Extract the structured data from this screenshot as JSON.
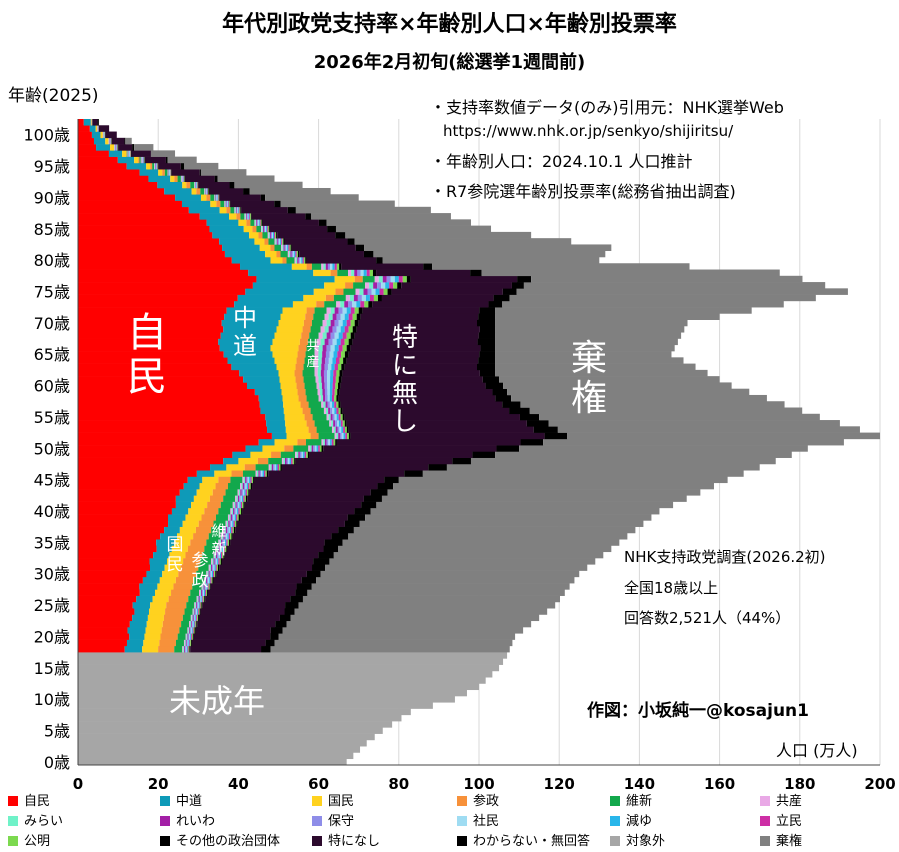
{
  "title": "年代別政党支持率×年齢別人口×年齢別投票率",
  "subtitle": "2026年2月初旬(総選挙1週間前)",
  "notes": [
    "・支持率数値データ(のみ)引用元：NHK選挙Web",
    "https://www.nhk.or.jp/senkyo/shijiritsu/",
    "・年齢別人口：2024.10.1 人口推計",
    "・R7参院選年齢別投票率(総務省抽出調査)"
  ],
  "survey_note": [
    "NHK支持政党調査(2026.2初)",
    "全国18歳以上",
    "回答数2,521人（44%）"
  ],
  "credit": "作図：小坂純一@kosajun1",
  "area_labels": {
    "jimin": "自民",
    "chudo": "中道",
    "kyosan": "共産",
    "tokuninashi": "特に無し",
    "kiken": "棄権",
    "miseinen": "未成年",
    "kokumin": "国民",
    "sansei": "参政",
    "ishin": "維新"
  },
  "colors": {
    "jimin": "#ff0000",
    "chudo": "#0e9ab8",
    "kokumin": "#ffd21f",
    "sansei": "#f7913a",
    "ishin": "#12a84c",
    "kyosan": "#e9a9e6",
    "mirai": "#6ff2c8",
    "reiwa": "#a31fa6",
    "hoshu": "#8e8de8",
    "shamin": "#9fdcf2",
    "genzei": "#29b6ea",
    "rikken": "#cd2ea5",
    "komei": "#7cd94f",
    "sonota": "#000000",
    "tokuninashi": "#2c0a2d",
    "wakaranai": "#000000",
    "taishogai": "#a6a6a6",
    "kiken": "#808080"
  },
  "chart_data": {
    "type": "bar",
    "orientation": "horizontal-stacked",
    "ylabel": "年齢(2025)",
    "xlabel": "人口 (万人)",
    "xlim": [
      0,
      200
    ],
    "ylim": [
      0,
      103
    ],
    "xticks": [
      "0",
      "20",
      "40",
      "60",
      "80",
      "100",
      "120",
      "140",
      "160",
      "180",
      "200"
    ],
    "yticks": [
      "0歳",
      "5歳",
      "10歳",
      "15歳",
      "20歳",
      "25歳",
      "30歳",
      "35歳",
      "40歳",
      "45歳",
      "50歳",
      "55歳",
      "60歳",
      "65歳",
      "70歳",
      "75歳",
      "80歳",
      "85歳",
      "90歳",
      "95歳",
      "100歳"
    ],
    "legend": [
      {
        "key": "jimin",
        "label": "自民"
      },
      {
        "key": "chudo",
        "label": "中道"
      },
      {
        "key": "kokumin",
        "label": "国民"
      },
      {
        "key": "sansei",
        "label": "参政"
      },
      {
        "key": "ishin",
        "label": "維新"
      },
      {
        "key": "kyosan",
        "label": "共産"
      },
      {
        "key": "mirai",
        "label": "みらい"
      },
      {
        "key": "reiwa",
        "label": "れいわ"
      },
      {
        "key": "hoshu",
        "label": "保守"
      },
      {
        "key": "shamin",
        "label": "社民"
      },
      {
        "key": "genzei",
        "label": "減ゆ"
      },
      {
        "key": "rikken",
        "label": "立民"
      },
      {
        "key": "komei",
        "label": "公明"
      },
      {
        "key": "sonota",
        "label": "その他の政治団体"
      },
      {
        "key": "tokuninashi",
        "label": "特になし"
      },
      {
        "key": "wakaranai",
        "label": "わからない・無回答"
      },
      {
        "key": "taishogai",
        "label": "対象外"
      },
      {
        "key": "kiken",
        "label": "棄権"
      }
    ],
    "population_by_age_approx": [
      {
        "age": 0,
        "population": 67
      },
      {
        "age": 3,
        "population": 72
      },
      {
        "age": 5,
        "population": 76
      },
      {
        "age": 8,
        "population": 83
      },
      {
        "age": 10,
        "population": 94
      },
      {
        "age": 12,
        "population": 100
      },
      {
        "age": 15,
        "population": 105
      },
      {
        "age": 17,
        "population": 107
      },
      {
        "age": 20,
        "population": 109
      },
      {
        "age": 25,
        "population": 119
      },
      {
        "age": 30,
        "population": 125
      },
      {
        "age": 35,
        "population": 135
      },
      {
        "age": 40,
        "population": 145
      },
      {
        "age": 45,
        "population": 162
      },
      {
        "age": 50,
        "population": 182
      },
      {
        "age": 52,
        "population": 200
      },
      {
        "age": 55,
        "population": 185
      },
      {
        "age": 60,
        "population": 163
      },
      {
        "age": 65,
        "population": 148
      },
      {
        "age": 70,
        "population": 152
      },
      {
        "age": 75,
        "population": 192
      },
      {
        "age": 78,
        "population": 175
      },
      {
        "age": 80,
        "population": 130
      },
      {
        "age": 82,
        "population": 133
      },
      {
        "age": 85,
        "population": 103
      },
      {
        "age": 88,
        "population": 88
      },
      {
        "age": 90,
        "population": 70
      },
      {
        "age": 95,
        "population": 35
      },
      {
        "age": 100,
        "population": 8
      }
    ]
  }
}
